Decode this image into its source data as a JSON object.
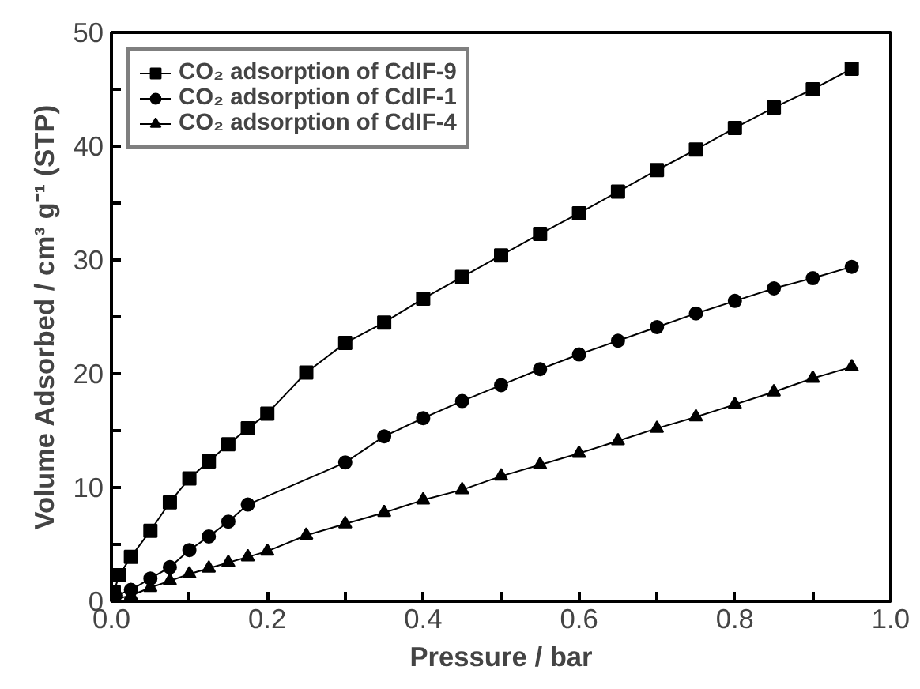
{
  "chart_data": {
    "type": "line",
    "xlabel": "Pressure / bar",
    "ylabel": "Volume Adsorbed / cm³ g⁻¹ (STP)",
    "xlim": [
      0,
      1.0
    ],
    "ylim": [
      0,
      50
    ],
    "xticks": [
      "0.0",
      {
        "value": 0.1,
        "label": null
      },
      0.2,
      {
        "value": 0.3,
        "label": null
      },
      0.4,
      {
        "value": 0.5,
        "label": null
      },
      0.6,
      {
        "value": 0.7,
        "label": null
      },
      0.8,
      {
        "value": 0.9,
        "label": null
      },
      "1.0"
    ],
    "yticks": [
      0,
      {
        "value": 5,
        "label": null
      },
      10,
      {
        "value": 15,
        "label": null
      },
      20,
      {
        "value": 25,
        "label": null
      },
      30,
      {
        "value": 35,
        "label": null
      },
      40,
      {
        "value": 45,
        "label": null
      },
      50
    ],
    "grid": false,
    "legend": "top left",
    "line_style": "solid",
    "series": [
      {
        "name": "CO₂ adsorption of CdIF-9",
        "color": "#000000",
        "marker": "square",
        "x": [
          0.003,
          0.01,
          0.025,
          0.05,
          0.075,
          0.1,
          0.125,
          0.15,
          0.175,
          0.2,
          0.25,
          0.3,
          0.35,
          0.4,
          0.45,
          0.5,
          0.55,
          0.6,
          0.65,
          0.7,
          0.75,
          0.8,
          0.85,
          0.9,
          0.95
        ],
        "values": [
          0.8,
          2.3,
          3.9,
          6.2,
          8.7,
          10.8,
          12.3,
          13.8,
          15.2,
          16.5,
          20.1,
          22.7,
          24.5,
          26.6,
          28.5,
          30.4,
          32.3,
          34.1,
          36.0,
          37.9,
          39.7,
          41.6,
          43.4,
          45.0,
          46.8
        ]
      },
      {
        "name": "CO₂ adsorption of CdIF-1",
        "color": "#000000",
        "marker": "circle",
        "x": [
          0.005,
          0.025,
          0.05,
          0.075,
          0.1,
          0.125,
          0.15,
          0.175,
          0.3,
          0.35,
          0.4,
          0.45,
          0.5,
          0.55,
          0.6,
          0.65,
          0.7,
          0.75,
          0.8,
          0.85,
          0.9,
          0.95
        ],
        "values": [
          0.5,
          1.0,
          2.0,
          3.0,
          4.5,
          5.7,
          7.0,
          8.5,
          12.2,
          14.5,
          16.1,
          17.6,
          19.0,
          20.4,
          21.7,
          22.9,
          24.1,
          25.3,
          26.4,
          27.5,
          28.4,
          29.4
        ]
      },
      {
        "name": "CO₂ adsorption of CdIF-4",
        "color": "#000000",
        "marker": "triangle",
        "x": [
          0.005,
          0.025,
          0.05,
          0.075,
          0.1,
          0.125,
          0.15,
          0.175,
          0.2,
          0.25,
          0.3,
          0.35,
          0.4,
          0.45,
          0.5,
          0.55,
          0.6,
          0.65,
          0.7,
          0.75,
          0.8,
          0.85,
          0.9,
          0.95
        ],
        "values": [
          0.2,
          0.5,
          1.2,
          1.8,
          2.4,
          2.9,
          3.4,
          3.9,
          4.4,
          5.8,
          6.8,
          7.8,
          8.9,
          9.8,
          11.0,
          12.0,
          13.0,
          14.1,
          15.2,
          16.2,
          17.3,
          18.4,
          19.6,
          20.6
        ]
      }
    ]
  }
}
